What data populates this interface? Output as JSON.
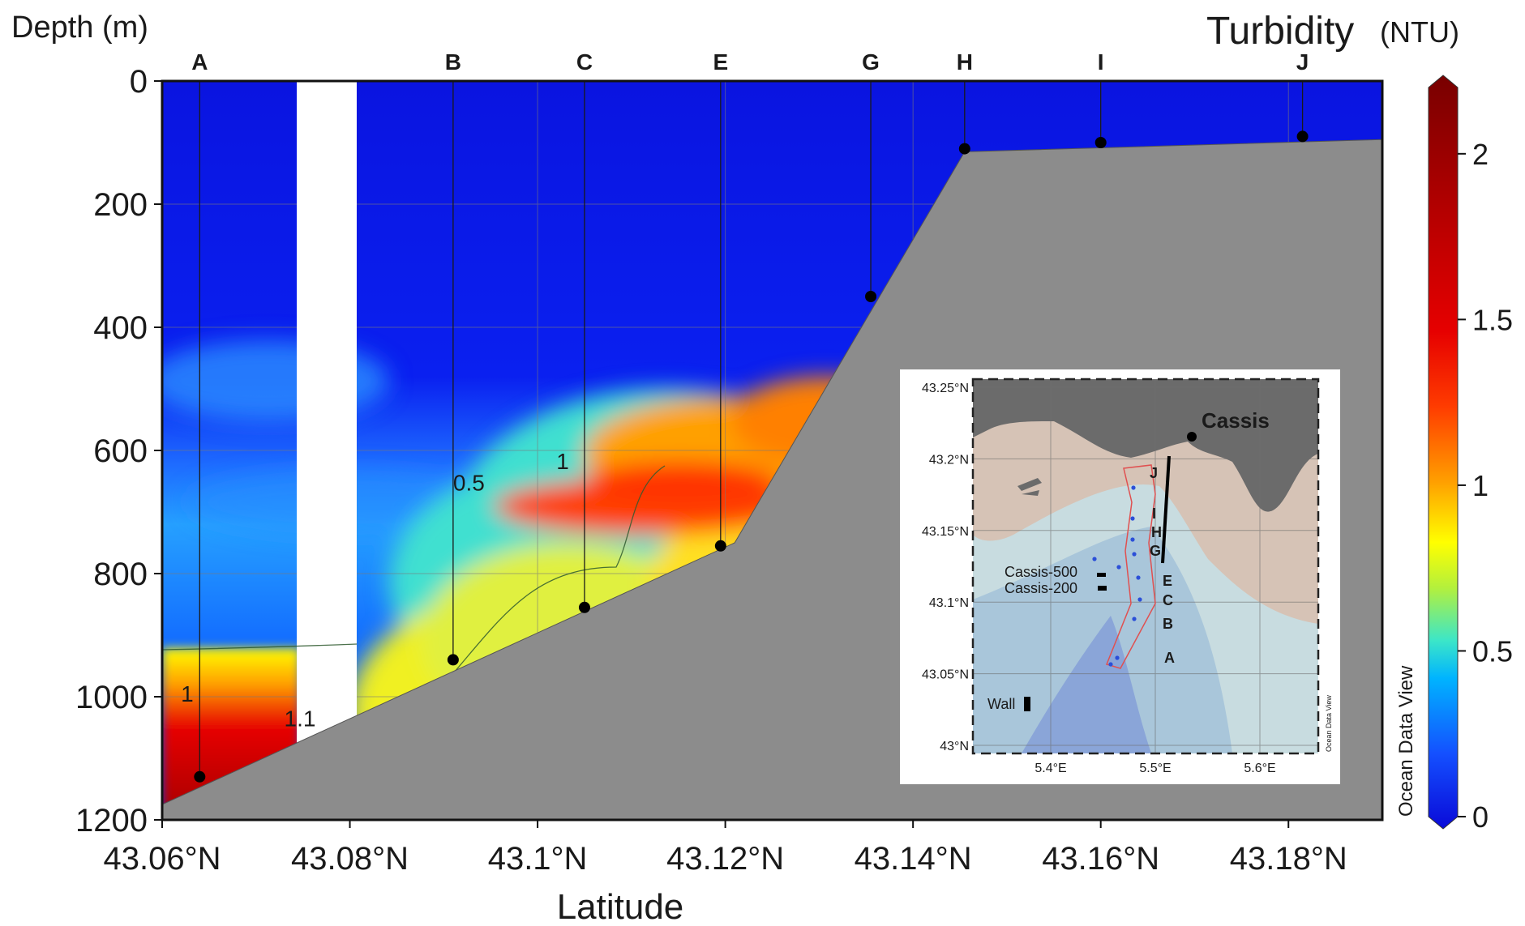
{
  "chart_data": {
    "type": "heatmap",
    "title": "",
    "xlabel": "Latitude",
    "ylabel": "Depth (m)",
    "xlim": [
      43.06,
      43.19
    ],
    "ylim": [
      1200,
      0
    ],
    "x_ticks": [
      43.06,
      43.08,
      43.1,
      43.12,
      43.14,
      43.16,
      43.18
    ],
    "x_tick_labels": [
      "43.06°N",
      "43.08°N",
      "43.1°N",
      "43.12°N",
      "43.14°N",
      "43.16°N",
      "43.18°N"
    ],
    "y_ticks": [
      0,
      200,
      400,
      600,
      800,
      1000,
      1200
    ],
    "y_tick_labels": [
      "0",
      "200",
      "400",
      "600",
      "800",
      "1000",
      "1200"
    ],
    "grid": true,
    "colorbar": {
      "title": "Turbidity",
      "unit": "(NTU)",
      "side_label": "Ocean Data View",
      "min": 0,
      "max": 2.2,
      "ticks": [
        0,
        0.5,
        1,
        1.5,
        2
      ],
      "tick_labels": [
        "0",
        "0.5",
        "1",
        "1.5",
        "2"
      ],
      "colors": [
        "#0a0ad8",
        "#1450ff",
        "#00b4ff",
        "#3ce6c8",
        "#b4f03c",
        "#ffff00",
        "#ffa000",
        "#ff3c00",
        "#e60000",
        "#b40000",
        "#780000"
      ]
    },
    "stations": [
      {
        "name": "A",
        "lat": 43.064,
        "bottom_depth": 1130
      },
      {
        "name": "B",
        "lat": 43.091,
        "bottom_depth": 940
      },
      {
        "name": "C",
        "lat": 43.105,
        "bottom_depth": 855
      },
      {
        "name": "E",
        "lat": 43.1195,
        "bottom_depth": 755
      },
      {
        "name": "G",
        "lat": 43.1355,
        "bottom_depth": 350
      },
      {
        "name": "H",
        "lat": 43.1455,
        "bottom_depth": 110
      },
      {
        "name": "I",
        "lat": 43.16,
        "bottom_depth": 100
      },
      {
        "name": "J",
        "lat": 43.1815,
        "bottom_depth": 90
      }
    ],
    "seafloor_profile": [
      [
        43.06,
        1175
      ],
      [
        43.121,
        750
      ],
      [
        43.1455,
        115
      ],
      [
        43.19,
        95
      ]
    ],
    "contours": [
      {
        "label": "0.5",
        "label_lat": 43.091,
        "label_depth": 665
      },
      {
        "label": "1",
        "label_lat": 43.102,
        "label_depth": 630
      },
      {
        "label": "1",
        "label_lat": 43.062,
        "label_depth": 1008
      },
      {
        "label": "1.1",
        "label_lat": 43.073,
        "label_depth": 1048
      }
    ]
  },
  "inset_map": {
    "lat_labels": [
      "43.25°N",
      "43.2°N",
      "43.15°N",
      "43.1°N",
      "43.05°N",
      "43°N"
    ],
    "lon_labels": [
      "5.4°E",
      "5.5°E",
      "5.6°E"
    ],
    "place_label": "Cassis",
    "site_labels": [
      "Cassis-500",
      "Cassis-200",
      "Wall"
    ],
    "station_labels": [
      "J",
      "I",
      "H",
      "G",
      "E",
      "C",
      "B",
      "A"
    ],
    "watermark": "Ocean Data View",
    "colors": {
      "land": "#6b6b6b",
      "shelf": "#d6c3b6",
      "water_light": "#c8dce0",
      "water_mid": "#a9c6da",
      "water_deep": "#8aa5d8",
      "frame": "#222222"
    }
  }
}
